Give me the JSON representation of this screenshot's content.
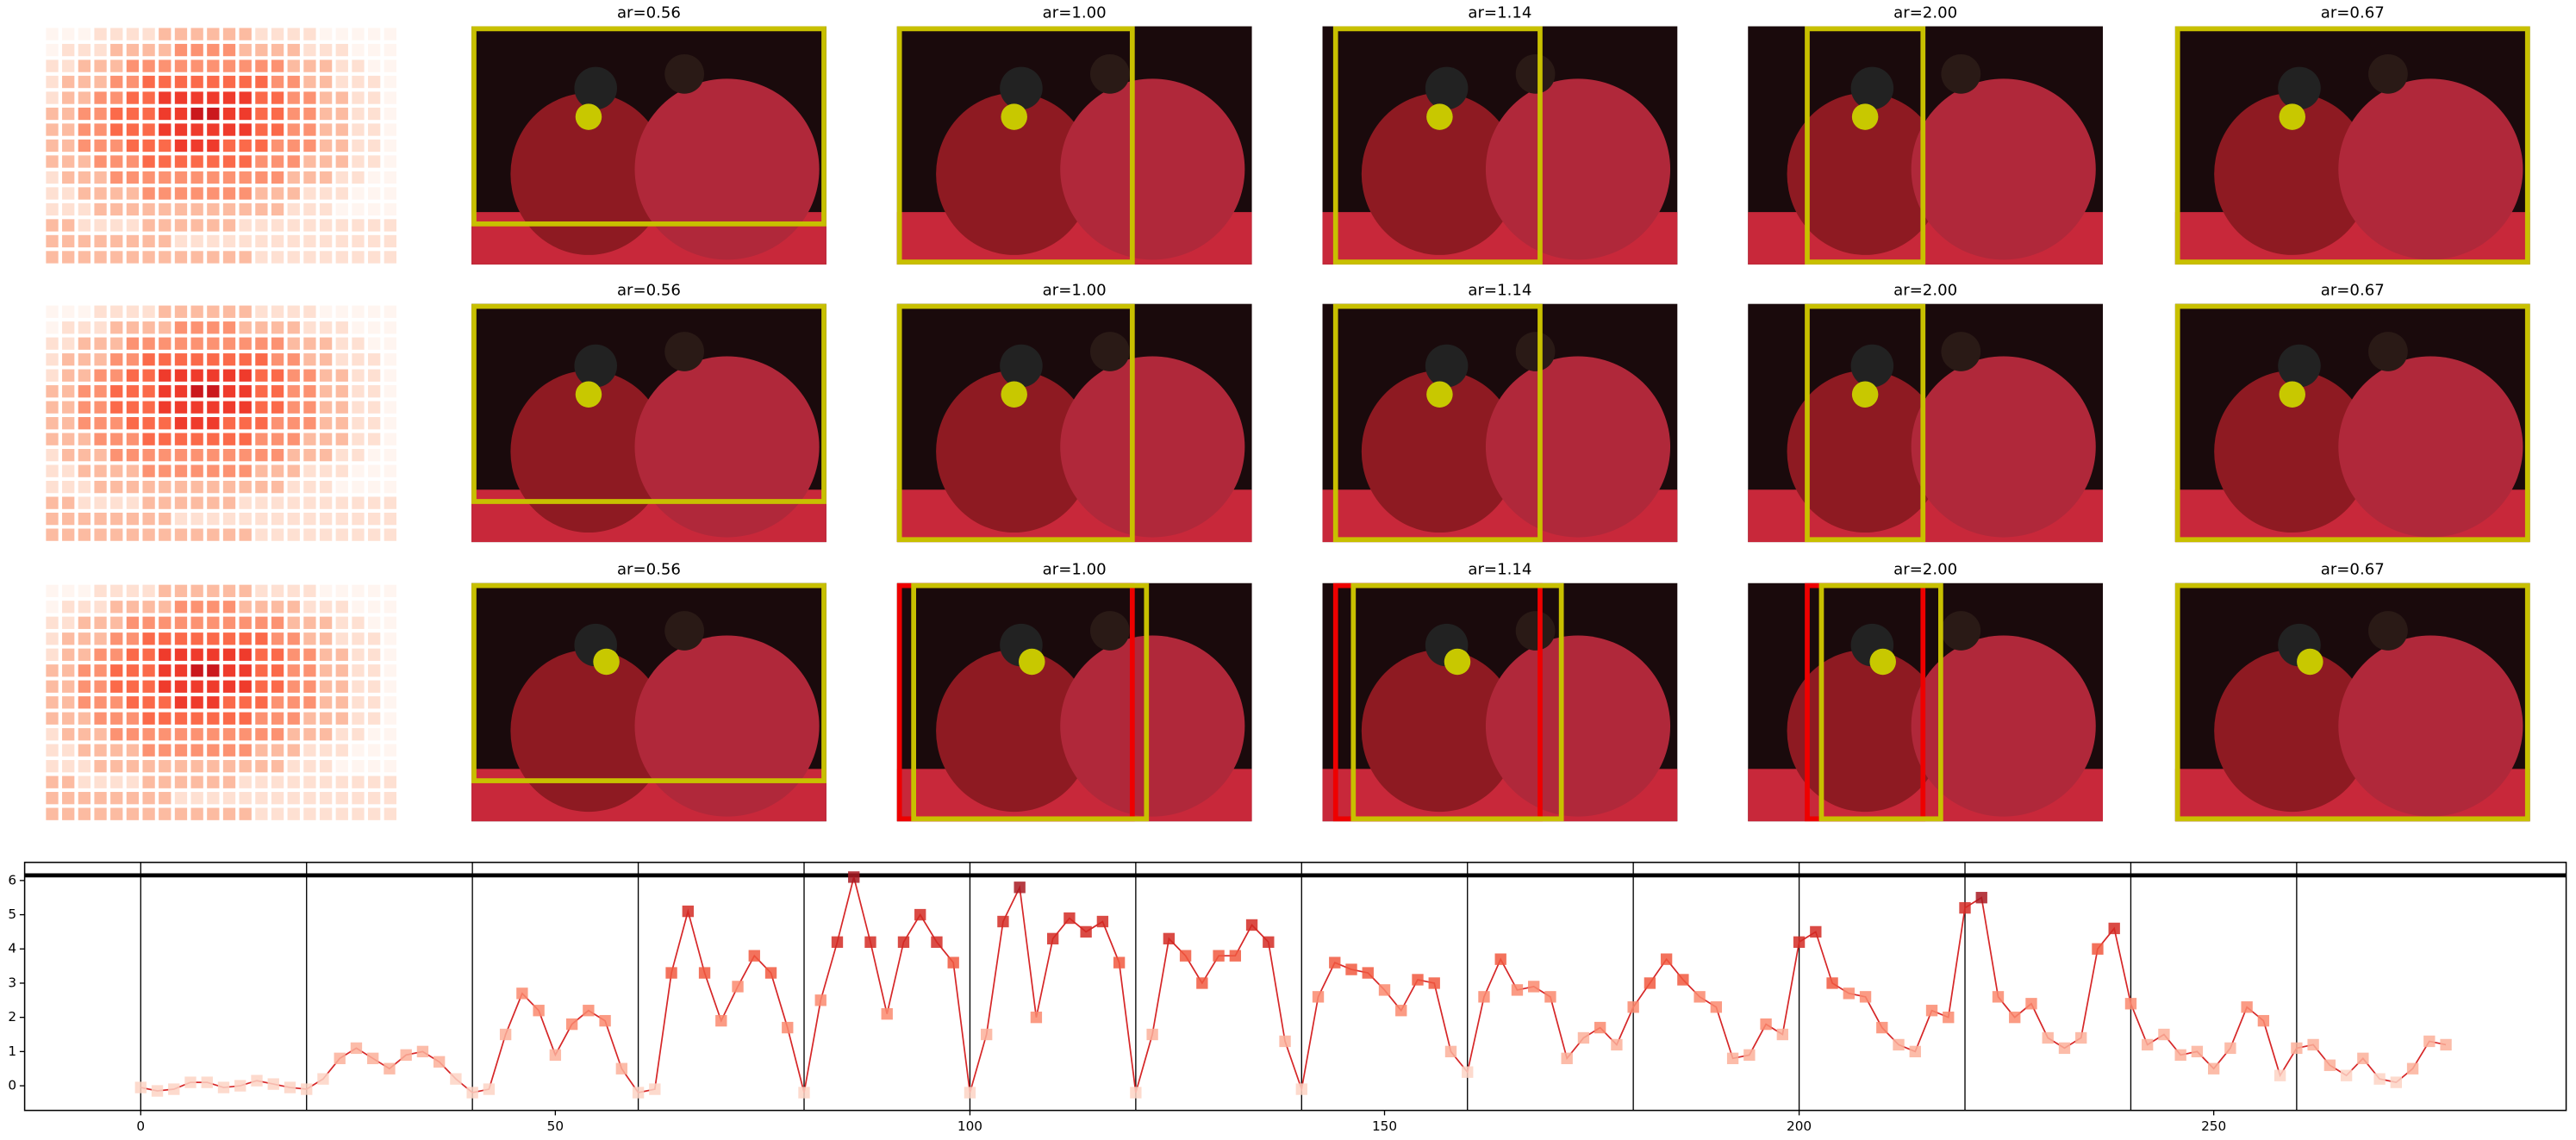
{
  "panel_titles": [
    [
      "ar=0.56",
      "ar=1.00",
      "ar=1.14",
      "ar=2.00",
      "ar=0.67"
    ],
    [
      "ar=0.56",
      "ar=1.00",
      "ar=1.14",
      "ar=2.00",
      "ar=0.67"
    ],
    [
      "ar=0.56",
      "ar=1.00",
      "ar=1.14",
      "ar=2.00",
      "ar=0.67"
    ]
  ],
  "chart_data": {
    "type": "line",
    "color": "#d62728",
    "x": [
      0,
      2,
      4,
      6,
      8,
      10,
      12,
      14,
      16,
      18,
      20,
      22,
      24,
      26,
      28,
      30,
      32,
      34,
      36,
      38,
      40,
      42,
      44,
      46,
      48,
      50,
      52,
      54,
      56,
      58,
      60,
      62,
      64,
      66,
      68,
      70,
      72,
      74,
      76,
      78,
      80,
      82,
      84,
      86,
      88,
      90,
      92,
      94,
      96,
      98,
      100,
      102,
      104,
      106,
      108,
      110,
      112,
      114,
      116,
      118,
      120,
      122,
      124,
      126,
      128,
      130,
      132,
      134,
      136,
      138,
      140,
      142,
      144,
      146,
      148,
      150,
      152,
      154,
      156,
      158,
      160,
      162,
      164,
      166,
      168,
      170,
      172,
      174,
      176,
      178,
      180,
      182,
      184,
      186,
      188,
      190,
      192,
      194,
      196,
      198,
      200,
      202,
      204,
      206,
      208,
      210,
      212,
      214,
      216,
      218,
      220,
      222,
      224,
      226,
      228,
      230,
      232,
      234,
      236,
      238,
      240,
      242,
      244,
      246,
      248,
      250,
      252,
      254,
      256,
      258,
      260,
      262,
      264,
      266,
      268,
      270,
      272,
      274,
      276,
      278
    ],
    "values": [
      -0.05,
      -0.15,
      -0.1,
      0.1,
      0.1,
      -0.05,
      0.0,
      0.15,
      0.05,
      -0.05,
      -0.1,
      0.2,
      0.8,
      1.1,
      0.8,
      0.5,
      0.9,
      1.0,
      0.7,
      0.2,
      -0.2,
      -0.1,
      1.5,
      2.7,
      2.2,
      0.9,
      1.8,
      2.2,
      1.9,
      0.5,
      -0.2,
      -0.1,
      3.3,
      5.1,
      3.3,
      1.9,
      2.9,
      3.8,
      3.3,
      1.7,
      -0.2,
      2.5,
      4.2,
      6.1,
      4.2,
      2.1,
      4.2,
      5.0,
      4.2,
      3.6,
      -0.2,
      1.5,
      4.8,
      5.8,
      2.0,
      4.3,
      4.9,
      4.5,
      4.8,
      3.6,
      -0.2,
      1.5,
      4.3,
      3.8,
      3.0,
      3.8,
      3.8,
      4.7,
      4.2,
      1.3,
      -0.1,
      2.6,
      3.6,
      3.4,
      3.3,
      2.8,
      2.2,
      3.1,
      3.0,
      1.0,
      0.4,
      2.6,
      3.7,
      2.8,
      2.9,
      2.6,
      0.8,
      1.4,
      1.7,
      1.2,
      2.3,
      3.0,
      3.7,
      3.1,
      2.6,
      2.3,
      0.8,
      0.9,
      1.8,
      1.5,
      4.2,
      4.5,
      3.0,
      2.7,
      2.6,
      1.7,
      1.2,
      1.0,
      2.2,
      2.0,
      5.2,
      5.5,
      2.6,
      2.0,
      2.4,
      1.4,
      1.1,
      1.4,
      4.0,
      4.6,
      2.4,
      1.2,
      1.5,
      0.9,
      1.0,
      0.5,
      1.1,
      2.3,
      1.9,
      0.3,
      1.1,
      1.2,
      0.6,
      0.3,
      0.8,
      0.2,
      0.1,
      0.5,
      1.3,
      1.2
    ],
    "vlines": [
      0,
      20,
      40,
      60,
      80,
      100,
      120,
      140,
      160,
      180,
      200,
      220,
      240,
      260
    ],
    "hline": 6.15,
    "xlim": [
      -14,
      292.5
    ],
    "ylim": [
      -0.72,
      6.53
    ],
    "xticks": [
      0,
      50,
      100,
      150,
      200,
      250
    ],
    "yticks": [
      0,
      1,
      2,
      3,
      4,
      5,
      6
    ]
  }
}
